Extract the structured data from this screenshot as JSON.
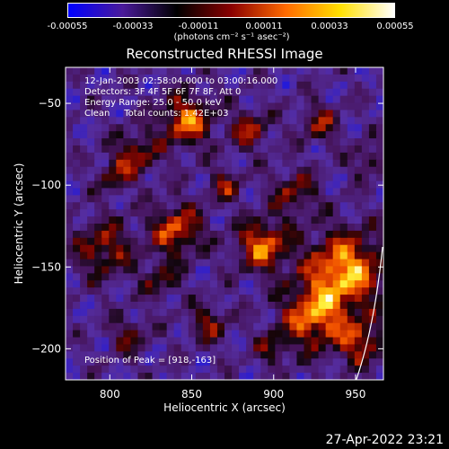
{
  "colorbar": {
    "ticks": [
      "-0.00055",
      "-0.00033",
      "-0.00011",
      "0.00011",
      "0.00033",
      "0.00055"
    ],
    "unit": "(photons cm⁻² s⁻¹ asec⁻²)",
    "range": [
      -0.00055,
      0.00055
    ],
    "stops": [
      "#0000ff",
      "#4a1a9a",
      "#000000",
      "#8a0000",
      "#ff6a00",
      "#ffe000",
      "#ffffff"
    ]
  },
  "chart_data": {
    "type": "heatmap",
    "title": "Reconstructed RHESSI Image",
    "xlabel": "Heliocentric X (arcsec)",
    "ylabel": "Heliocentric Y (arcsec)",
    "xlim": [
      773,
      967
    ],
    "ylim": [
      -219,
      -28
    ],
    "xticks": [
      800,
      850,
      900,
      950
    ],
    "yticks": [
      -50,
      -100,
      -150,
      -200
    ],
    "peak": [
      918,
      -163
    ],
    "annotations": [
      "12-Jan-2003 02:58:04.000 to 03:00:16.000",
      "Detectors: 3F 4F 5F 6F 7F 8F, Att 0",
      "Energy Range: 25.0 - 50.0 keV",
      "Clean     Total counts: 1.42E+03"
    ],
    "peak_label": "Position of Peak = [918,-163]"
  },
  "timestamp": "27-Apr-2022 23:21"
}
